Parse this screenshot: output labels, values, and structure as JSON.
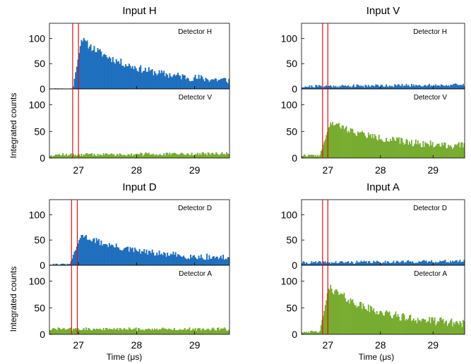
{
  "figure": {
    "ylabel": "Integrated counts",
    "xlabel": "Time (μs)",
    "colors": {
      "detector_a_blue": "#1f6fbf",
      "detector_b_green": "#77ac30",
      "marker_red": "#e01010"
    }
  },
  "chart_data": [
    {
      "type": "bar",
      "title": "Input H",
      "xlim": [
        26.5,
        29.6
      ],
      "ylim": [
        0,
        130
      ],
      "x_ticks": [
        27,
        28,
        29
      ],
      "y_ticks": [
        0,
        50,
        100
      ],
      "markers_x": [
        26.9,
        27.0
      ],
      "subplots": [
        {
          "label": "Detector H",
          "color": "#1f6fbf",
          "kind": "decay",
          "baseline": 0,
          "noise": 1.5,
          "rise_start": 26.9,
          "rise_end": 27.05,
          "peak": 98,
          "tau": 0.9,
          "floor": 12,
          "noise_decay": 6,
          "seed": 11
        },
        {
          "label": "Detector V",
          "color": "#77ac30",
          "kind": "flat",
          "baseline": 6,
          "slope": 2,
          "noise": 3,
          "seed": 12
        }
      ]
    },
    {
      "type": "bar",
      "title": "Input V",
      "xlim": [
        26.5,
        29.6
      ],
      "ylim": [
        0,
        130
      ],
      "x_ticks": [
        27,
        28,
        29
      ],
      "y_ticks": [
        0,
        50,
        100
      ],
      "markers_x": [
        26.9,
        27.0
      ],
      "subplots": [
        {
          "label": "Detector H",
          "color": "#1f6fbf",
          "kind": "flat",
          "baseline": 5,
          "slope": 3,
          "noise": 3,
          "seed": 21
        },
        {
          "label": "Detector V",
          "color": "#77ac30",
          "kind": "decay",
          "baseline": 5,
          "noise": 2,
          "rise_start": 26.85,
          "rise_end": 27.05,
          "peak": 62,
          "tau": 1.0,
          "floor": 14,
          "noise_decay": 5,
          "seed": 22
        }
      ]
    },
    {
      "type": "bar",
      "title": "Input D",
      "xlim": [
        26.5,
        29.6
      ],
      "ylim": [
        0,
        130
      ],
      "x_ticks": [
        27,
        28,
        29
      ],
      "y_ticks": [
        0,
        50,
        100
      ],
      "markers_x": [
        26.88,
        26.98
      ],
      "subplots": [
        {
          "label": "Detector D",
          "color": "#1f6fbf",
          "kind": "decay",
          "baseline": 2,
          "noise": 1.5,
          "rise_start": 26.85,
          "rise_end": 27.05,
          "peak": 58,
          "tau": 0.9,
          "floor": 10,
          "noise_decay": 5,
          "seed": 31
        },
        {
          "label": "Detector A",
          "color": "#77ac30",
          "kind": "flat",
          "baseline": 10,
          "slope": 0,
          "noise": 3,
          "seed": 32
        }
      ]
    },
    {
      "type": "bar",
      "title": "Input A",
      "xlim": [
        26.5,
        29.6
      ],
      "ylim": [
        0,
        130
      ],
      "x_ticks": [
        27,
        28,
        29
      ],
      "y_ticks": [
        0,
        50,
        100
      ],
      "markers_x": [
        26.9,
        27.0
      ],
      "subplots": [
        {
          "label": "Detector D",
          "color": "#1f6fbf",
          "kind": "flat",
          "baseline": 5,
          "slope": 3,
          "noise": 3,
          "seed": 41
        },
        {
          "label": "Detector A",
          "color": "#77ac30",
          "kind": "decay",
          "baseline": 5,
          "noise": 2,
          "rise_start": 26.85,
          "rise_end": 27.02,
          "peak": 85,
          "tau": 0.9,
          "floor": 12,
          "noise_decay": 6,
          "seed": 42
        }
      ]
    }
  ]
}
